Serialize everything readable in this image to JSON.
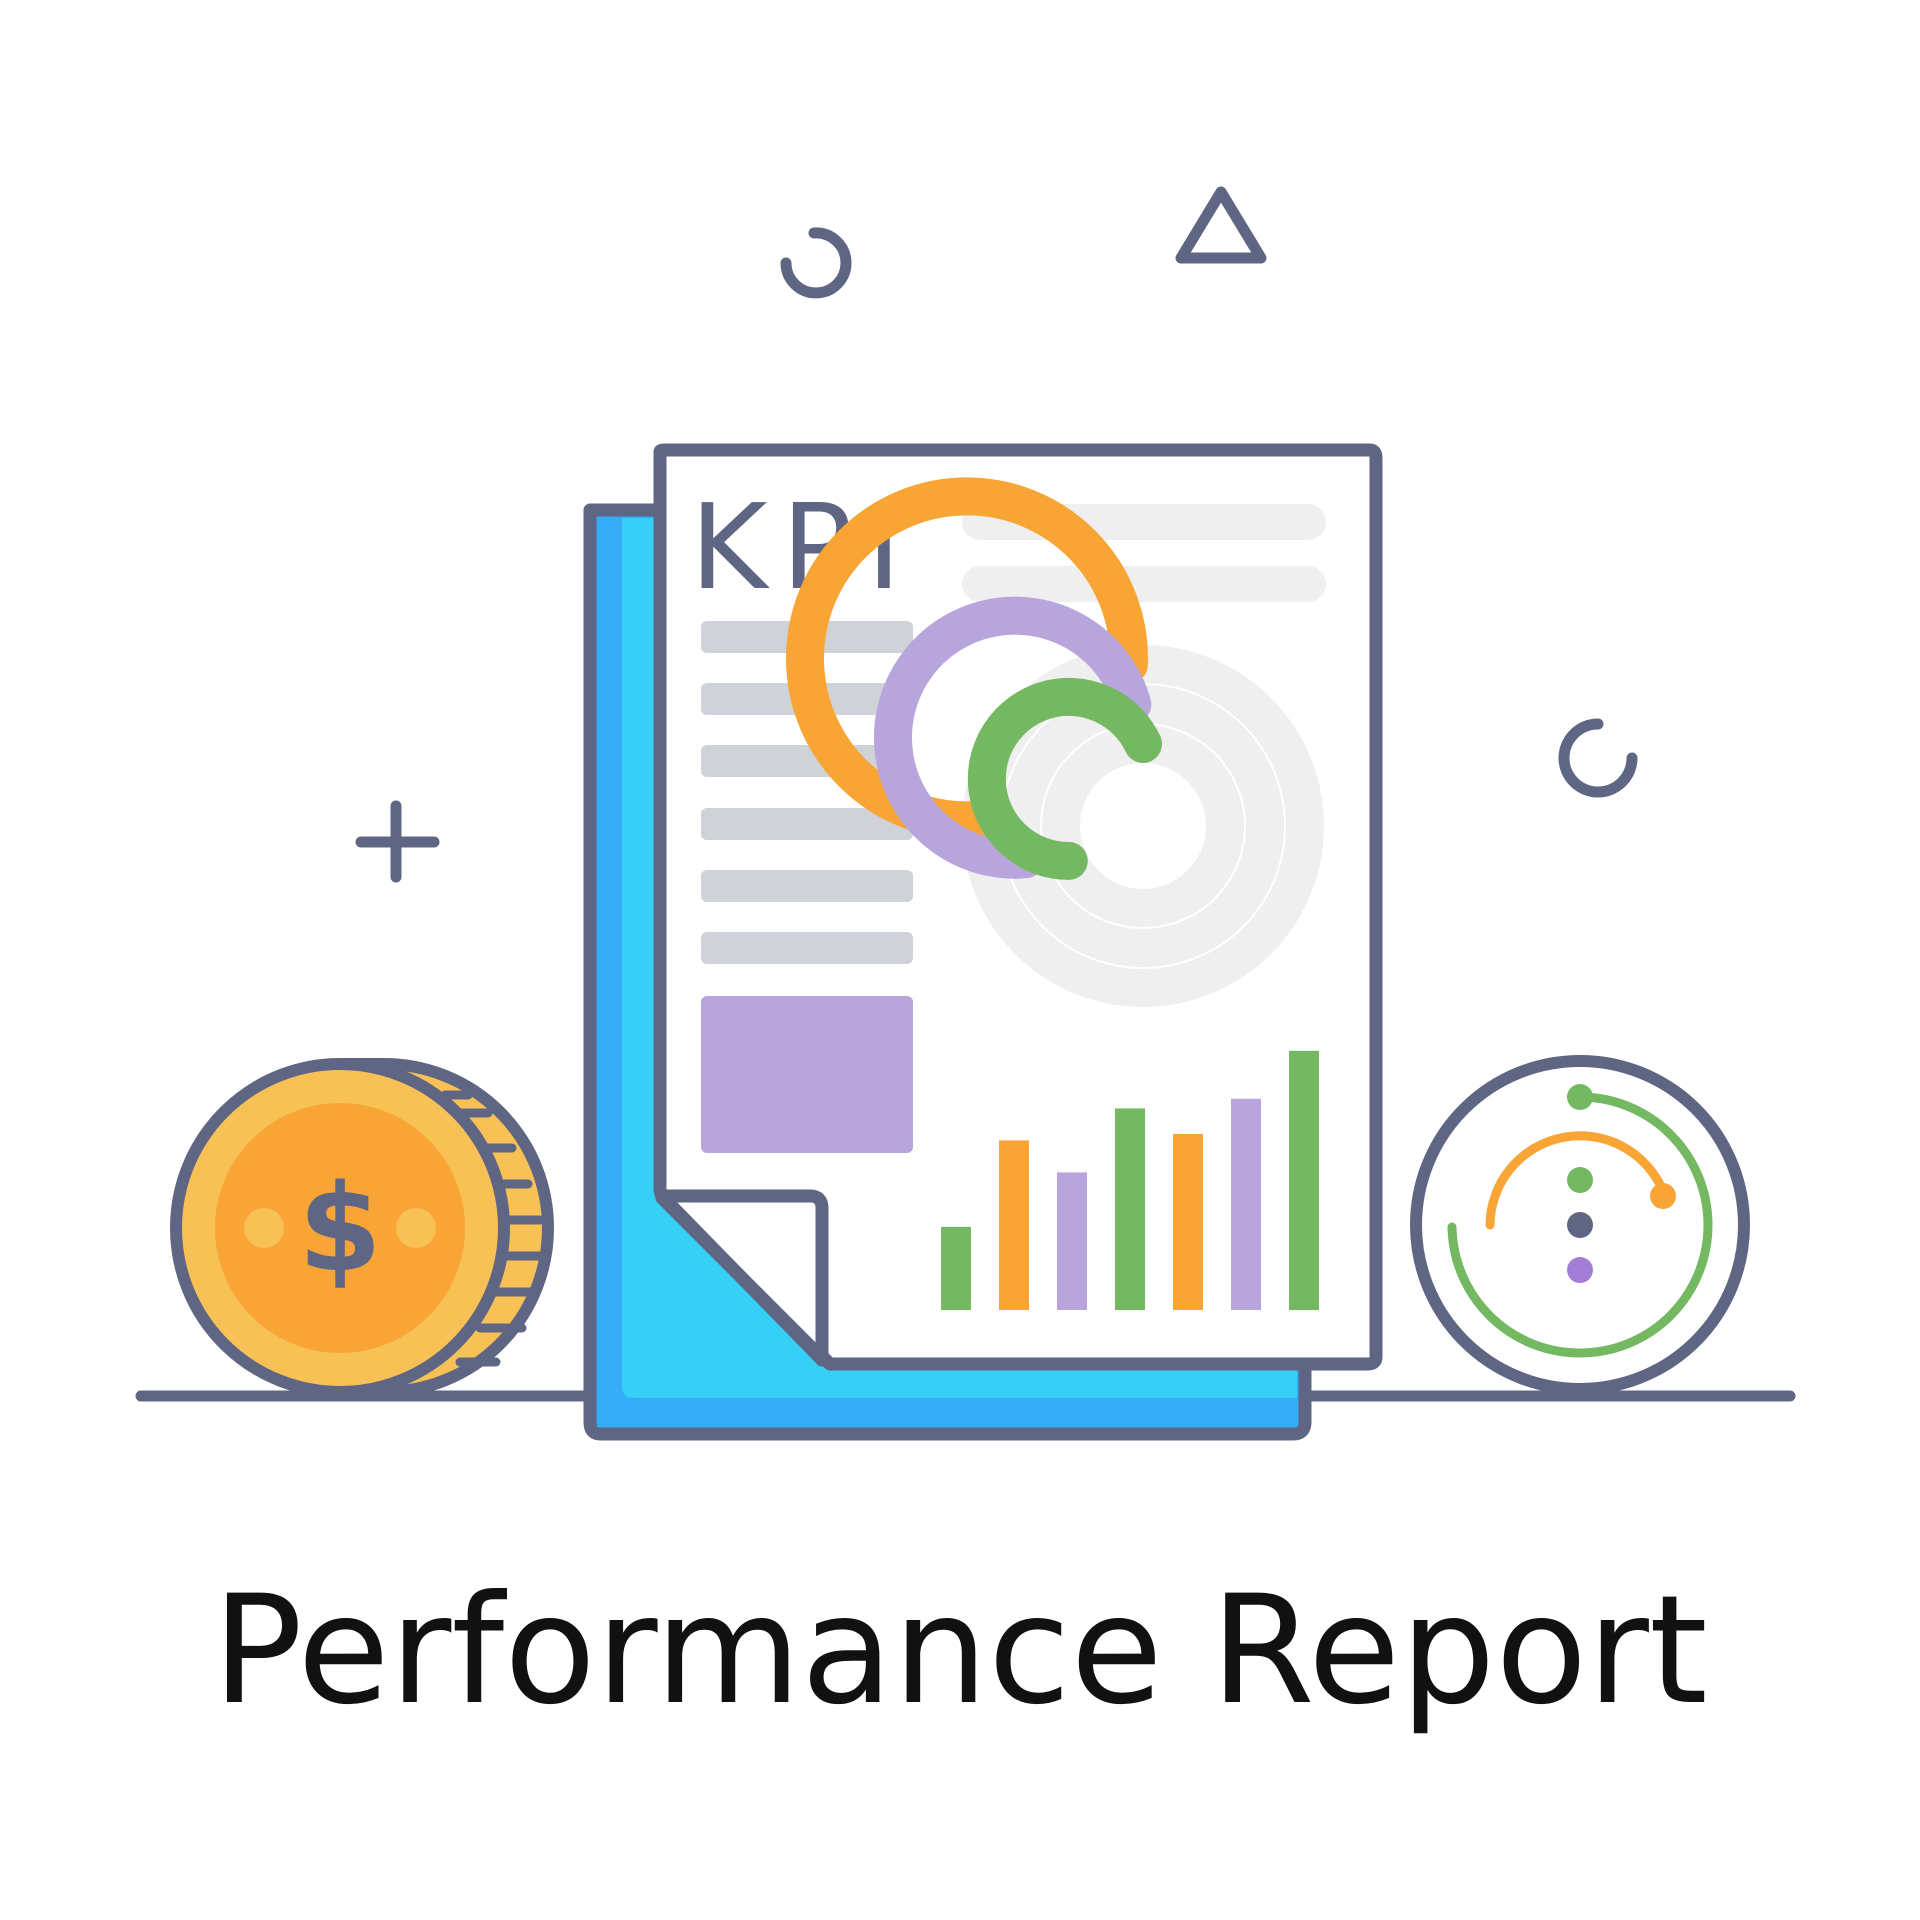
{
  "document": {
    "header_label": "KPI"
  },
  "coin": {
    "symbol": "$"
  },
  "caption": {
    "text": "Performance Report"
  },
  "colors": {
    "outline": "#5f6683",
    "orange": "#f9a535",
    "coin_gold": "#f8c156",
    "purple": "#b7a5dc",
    "green": "#74b962",
    "blue_dark": "#36acf6",
    "blue_light": "#36d0f6",
    "line_gray": "#cfd2d6",
    "track_gray": "#efefef"
  },
  "icons": [
    "plus-icon",
    "ring-icon",
    "triangle-icon",
    "dollar-coin-icon",
    "gauge-icon",
    "donut-chart-icon",
    "bar-chart-icon"
  ],
  "chart_data": [
    {
      "type": "bar",
      "categories": [
        "",
        "",
        "",
        "",
        "",
        "",
        ""
      ],
      "values": [
        26,
        53,
        43,
        63,
        55,
        66,
        81
      ],
      "ylim": [
        0,
        100
      ]
    },
    {
      "type": "pie",
      "series": [
        {
          "values": [
            0.77
          ]
        },
        {
          "values": [
            0.72
          ]
        },
        {
          "values": [
            0.68
          ]
        }
      ]
    }
  ]
}
